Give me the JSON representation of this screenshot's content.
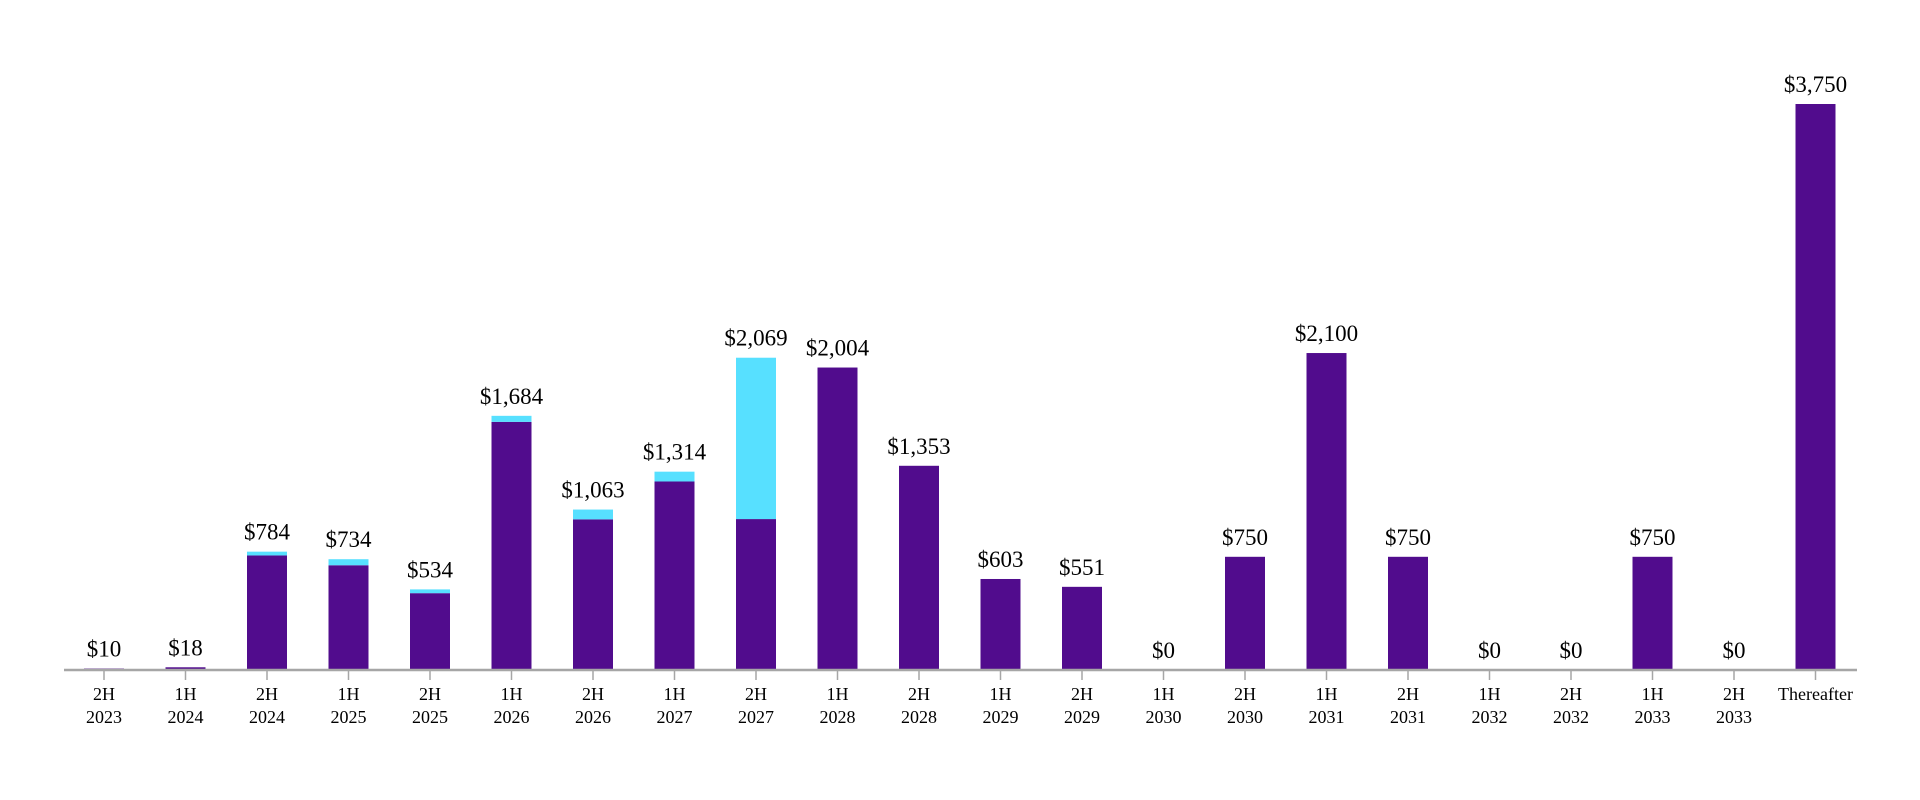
{
  "chart_data": {
    "type": "bar",
    "stacked": true,
    "title": "",
    "xlabel": "",
    "ylabel": "",
    "ylim": [
      0,
      3750
    ],
    "grid": false,
    "legend": "none",
    "categories": [
      [
        "2H",
        "2023"
      ],
      [
        "1H",
        "2024"
      ],
      [
        "2H",
        "2024"
      ],
      [
        "1H",
        "2025"
      ],
      [
        "2H",
        "2025"
      ],
      [
        "1H",
        "2026"
      ],
      [
        "2H",
        "2026"
      ],
      [
        "1H",
        "2027"
      ],
      [
        "2H",
        "2027"
      ],
      [
        "1H",
        "2028"
      ],
      [
        "2H",
        "2028"
      ],
      [
        "1H",
        "2029"
      ],
      [
        "2H",
        "2029"
      ],
      [
        "1H",
        "2030"
      ],
      [
        "2H",
        "2030"
      ],
      [
        "1H",
        "2031"
      ],
      [
        "2H",
        "2031"
      ],
      [
        "1H",
        "2032"
      ],
      [
        "2H",
        "2032"
      ],
      [
        "1H",
        "2033"
      ],
      [
        "2H",
        "2033"
      ],
      [
        "Thereafter"
      ]
    ],
    "series": [
      {
        "color": "#510C8D",
        "values": [
          10,
          18,
          759,
          694,
          509,
          1644,
          998,
          1249,
          1000,
          2004,
          1353,
          603,
          551,
          0,
          750,
          2100,
          750,
          0,
          0,
          750,
          0,
          3750
        ]
      },
      {
        "color": "#57E0FF",
        "values": [
          0,
          0,
          25,
          40,
          25,
          40,
          65,
          65,
          1069,
          0,
          0,
          0,
          0,
          0,
          0,
          0,
          0,
          0,
          0,
          0,
          0,
          0
        ]
      }
    ],
    "totals": [
      10,
      18,
      784,
      734,
      534,
      1684,
      1063,
      1314,
      2069,
      2004,
      1353,
      603,
      551,
      0,
      750,
      2100,
      750,
      0,
      0,
      750,
      0,
      3750
    ],
    "data_labels": [
      "$10",
      "$18",
      "$784",
      "$734",
      "$534",
      "$1,684",
      "$1,063",
      "$1,314",
      "$2,069",
      "$2,004",
      "$1,353",
      "$603",
      "$551",
      "$0",
      "$750",
      "$2,100",
      "$750",
      "$0",
      "$0",
      "$750",
      "$0",
      "$3,750"
    ],
    "axis_color": "#A6A6A6"
  }
}
